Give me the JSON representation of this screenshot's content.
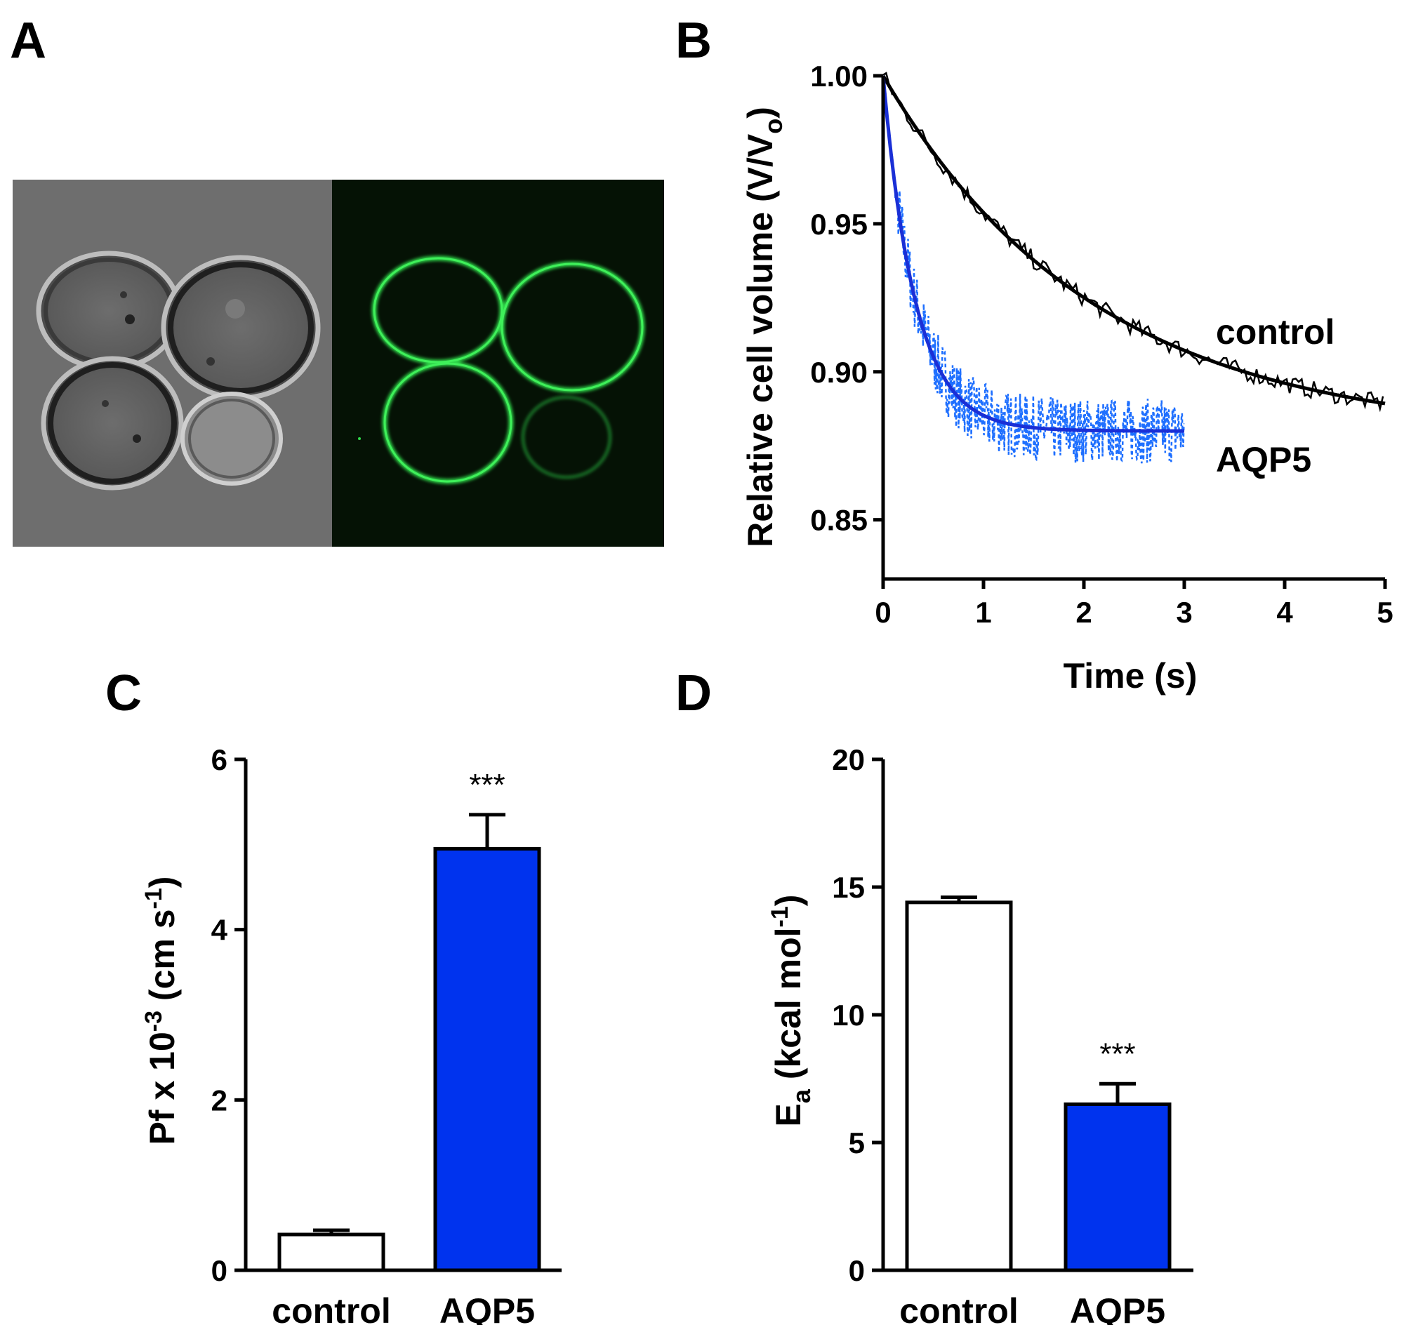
{
  "panels": {
    "a": {
      "letter": "A"
    },
    "b": {
      "letter": "B"
    },
    "c": {
      "letter": "C"
    },
    "d": {
      "letter": "D"
    }
  },
  "colors": {
    "control_line": "#000000",
    "aqp5_fit": "#1a2fd6",
    "aqp5_raw": "#1e6fff",
    "aqp5_bar": "#0033ee",
    "control_bar": "#ffffff",
    "fluorescence": "#2fd84a"
  },
  "chart_data": [
    {
      "id": "B",
      "type": "line",
      "xlabel": "Time (s)",
      "ylabel": "Relative cell volume (V/V",
      "ylabel_sub": "o",
      "ylabel_close": ")",
      "xlim": [
        0,
        5
      ],
      "ylim": [
        0.83,
        1.0
      ],
      "xticks": [
        "0",
        "1",
        "2",
        "3",
        "4",
        "5"
      ],
      "yticks": [
        "0.85",
        "0.90",
        "0.95",
        "1.00"
      ],
      "series": [
        {
          "name": "control",
          "fit": {
            "y0": 1.0,
            "plateau": 0.878,
            "tau": 2.1,
            "x_end": 5.0
          }
        },
        {
          "name": "AQP5",
          "fit": {
            "y0": 1.0,
            "plateau": 0.88,
            "tau": 0.32,
            "x_end": 3.0
          }
        }
      ]
    },
    {
      "id": "C",
      "type": "bar",
      "categories": [
        "control",
        "AQP5"
      ],
      "values": [
        0.42,
        4.95
      ],
      "errors": [
        0.05,
        0.4
      ],
      "significance": [
        "",
        "***"
      ],
      "ylabel_pre": "Pf x 10",
      "ylabel_exp": "-3",
      "ylabel_mid": " (cm s",
      "ylabel_exp2": "-1",
      "ylabel_post": ")",
      "ylim": [
        0,
        6
      ],
      "yticks": [
        "0",
        "2",
        "4",
        "6"
      ]
    },
    {
      "id": "D",
      "type": "bar",
      "categories": [
        "control",
        "AQP5"
      ],
      "values": [
        14.4,
        6.5
      ],
      "errors": [
        0.2,
        0.8
      ],
      "significance": [
        "",
        "***"
      ],
      "ylabel_pre": "E",
      "ylabel_sub": "a",
      "ylabel_mid": " (kcal mol",
      "ylabel_exp": "-1",
      "ylabel_post": ")",
      "ylim": [
        0,
        20
      ],
      "yticks": [
        "0",
        "5",
        "10",
        "15",
        "20"
      ]
    }
  ]
}
